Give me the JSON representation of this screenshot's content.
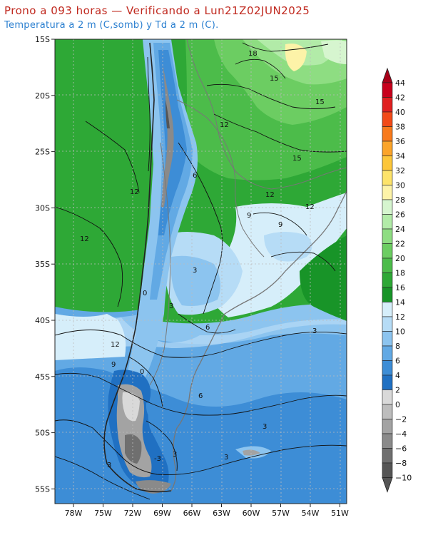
{
  "header": {
    "title": "Prono a 093 horas — Verificando a Lun21Z02JUN2025",
    "subtitle": "Temperatura a 2 m (C,somb) y Td a 2 m (C)."
  },
  "axes": {
    "lat_labels": [
      "15S",
      "20S",
      "25S",
      "30S",
      "35S",
      "40S",
      "45S",
      "50S",
      "55S"
    ],
    "lon_labels": [
      "78W",
      "75W",
      "72W",
      "69W",
      "66W",
      "63W",
      "60W",
      "57W",
      "54W",
      "51W"
    ]
  },
  "colorbar": {
    "labels": [
      "44",
      "42",
      "40",
      "38",
      "36",
      "34",
      "32",
      "30",
      "28",
      "26",
      "24",
      "22",
      "20",
      "18",
      "16",
      "14",
      "12",
      "10",
      "8",
      "6",
      "4",
      "2",
      "0",
      "−2",
      "−4",
      "−6",
      "−8",
      "−10"
    ],
    "colors": {
      "c_44": "#a80018",
      "c_42": "#c8001c",
      "c_40": "#e02020",
      "c_38": "#f24a18",
      "c_36": "#f87a1c",
      "c_34": "#fba42a",
      "c_32": "#fcc63a",
      "c_30": "#fde36a",
      "c_28": "#fdf3a8",
      "c_26": "#d6f5cf",
      "c_24": "#b2eba8",
      "c_22": "#8edd82",
      "c_20": "#6ccd62",
      "c_18": "#4cbc4a",
      "c_16": "#2ea836",
      "c_14": "#189428",
      "c_12": "#d6eefa",
      "c_10": "#b6dcf6",
      "c_8": "#8cc4ef",
      "c_6": "#62a9e4",
      "c_4": "#3d8dd6",
      "c_2": "#2070c2",
      "c_0": "#d9d9d9",
      "c_m2": "#bdbdbd",
      "c_m4": "#a3a3a3",
      "c_m6": "#8a8a8a",
      "c_m8": "#6f6f6f",
      "c_m10": "#555555"
    }
  },
  "contour_labels": [
    {
      "text": "18"
    },
    {
      "text": "15"
    },
    {
      "text": "15"
    },
    {
      "text": "15"
    },
    {
      "text": "12"
    },
    {
      "text": "12"
    },
    {
      "text": "12"
    },
    {
      "text": "12"
    },
    {
      "text": "12"
    },
    {
      "text": "9"
    },
    {
      "text": "9"
    },
    {
      "text": "6"
    },
    {
      "text": "6"
    },
    {
      "text": "6"
    },
    {
      "text": "3"
    },
    {
      "text": "3"
    },
    {
      "text": "3"
    },
    {
      "text": "3"
    },
    {
      "text": "3"
    },
    {
      "text": "3"
    },
    {
      "text": "0"
    },
    {
      "text": "0"
    },
    {
      "text": "-3"
    },
    {
      "text": "9"
    },
    {
      "text": "12"
    },
    {
      "text": "3"
    }
  ]
}
